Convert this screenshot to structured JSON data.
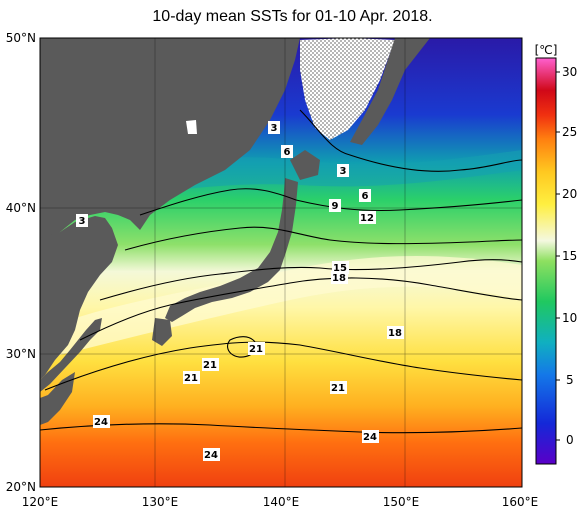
{
  "title": "10-day mean SSTs for 01-10 Apr. 2018.",
  "unit": "[℃]",
  "lat_labels": [
    "50°N",
    "40°N",
    "30°N",
    "20°N"
  ],
  "lon_labels": [
    "120°E",
    "130°E",
    "140°E",
    "150°E",
    "160°E"
  ],
  "colorbar_ticks": [
    "30",
    "25",
    "20",
    "15",
    "10",
    "5",
    "0"
  ],
  "contour_labels": [
    "3",
    "6",
    "3",
    "6",
    "9",
    "12",
    "3",
    "15",
    "18",
    "18",
    "21",
    "21",
    "21",
    "21",
    "24",
    "24",
    "24"
  ],
  "colors": {
    "land": "#5a5a5a",
    "sea_ice": "#ffffff"
  }
}
